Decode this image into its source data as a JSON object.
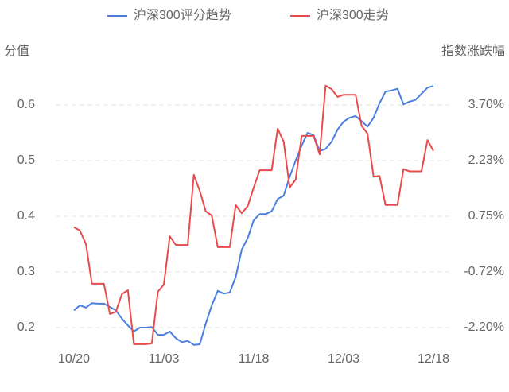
{
  "chart_data": {
    "type": "line",
    "y_label": "分值",
    "y2_label": "指数涨跌幅",
    "categories": [
      "10/20",
      null,
      null,
      null,
      null,
      null,
      null,
      null,
      null,
      null,
      null,
      null,
      null,
      null,
      null,
      "11/03",
      null,
      null,
      null,
      null,
      null,
      null,
      null,
      null,
      null,
      null,
      null,
      null,
      null,
      null,
      "11/18",
      null,
      null,
      null,
      null,
      null,
      null,
      null,
      null,
      null,
      null,
      null,
      null,
      null,
      null,
      "12/03",
      null,
      null,
      null,
      null,
      null,
      null,
      null,
      null,
      null,
      null,
      null,
      null,
      null,
      null,
      "12/18"
    ],
    "series": [
      {
        "name": "沪深300评分趋势",
        "color": "#4a7fe0",
        "axis": "y",
        "values": [
          0.231,
          0.24,
          0.236,
          0.244,
          0.243,
          0.243,
          0.237,
          0.231,
          0.216,
          0.204,
          0.193,
          0.2,
          0.2,
          0.201,
          0.187,
          0.187,
          0.193,
          0.181,
          0.174,
          0.176,
          0.169,
          0.17,
          0.207,
          0.24,
          0.266,
          0.261,
          0.263,
          0.291,
          0.34,
          0.361,
          0.393,
          0.404,
          0.404,
          0.409,
          0.431,
          0.437,
          0.471,
          0.5,
          0.527,
          0.55,
          0.546,
          0.517,
          0.521,
          0.534,
          0.556,
          0.57,
          0.577,
          0.58,
          0.571,
          0.561,
          0.577,
          0.603,
          0.624,
          0.626,
          0.629,
          0.601,
          0.606,
          0.609,
          0.62,
          0.631,
          0.634
        ]
      },
      {
        "name": "沪深300走势",
        "color": "#e84b4b",
        "axis": "y2",
        "values": [
          0.46,
          0.37,
          0.01,
          -1.04,
          -1.04,
          -1.04,
          -1.84,
          -1.78,
          -1.31,
          -1.21,
          -2.64,
          -2.64,
          -2.64,
          -2.62,
          -1.25,
          -1.06,
          0.22,
          -0.01,
          -0.01,
          -0.01,
          1.85,
          1.42,
          0.88,
          0.77,
          -0.07,
          -0.07,
          -0.07,
          1.05,
          0.83,
          1.02,
          1.51,
          1.97,
          1.97,
          1.97,
          3.07,
          2.73,
          1.51,
          1.72,
          2.88,
          2.88,
          2.88,
          2.39,
          4.21,
          4.12,
          3.91,
          3.97,
          3.97,
          3.97,
          3.15,
          2.94,
          1.8,
          1.82,
          1.05,
          1.05,
          1.05,
          2.0,
          1.94,
          1.94,
          1.94,
          2.77,
          2.48
        ]
      }
    ],
    "ylim": [
      0.16,
      0.66
    ],
    "yticks": [
      0.2,
      0.3,
      0.4,
      0.5,
      0.6
    ],
    "y2lim": [
      -2.79,
      4.585
    ],
    "y2ticks": [
      {
        "value": -2.2,
        "label": "-2.20%"
      },
      {
        "value": -0.72,
        "label": "-0.72%"
      },
      {
        "value": 0.75,
        "label": "0.75%"
      },
      {
        "value": 2.23,
        "label": "2.23%"
      },
      {
        "value": 3.7,
        "label": "3.70%"
      }
    ],
    "grid": true,
    "legend": "top"
  }
}
